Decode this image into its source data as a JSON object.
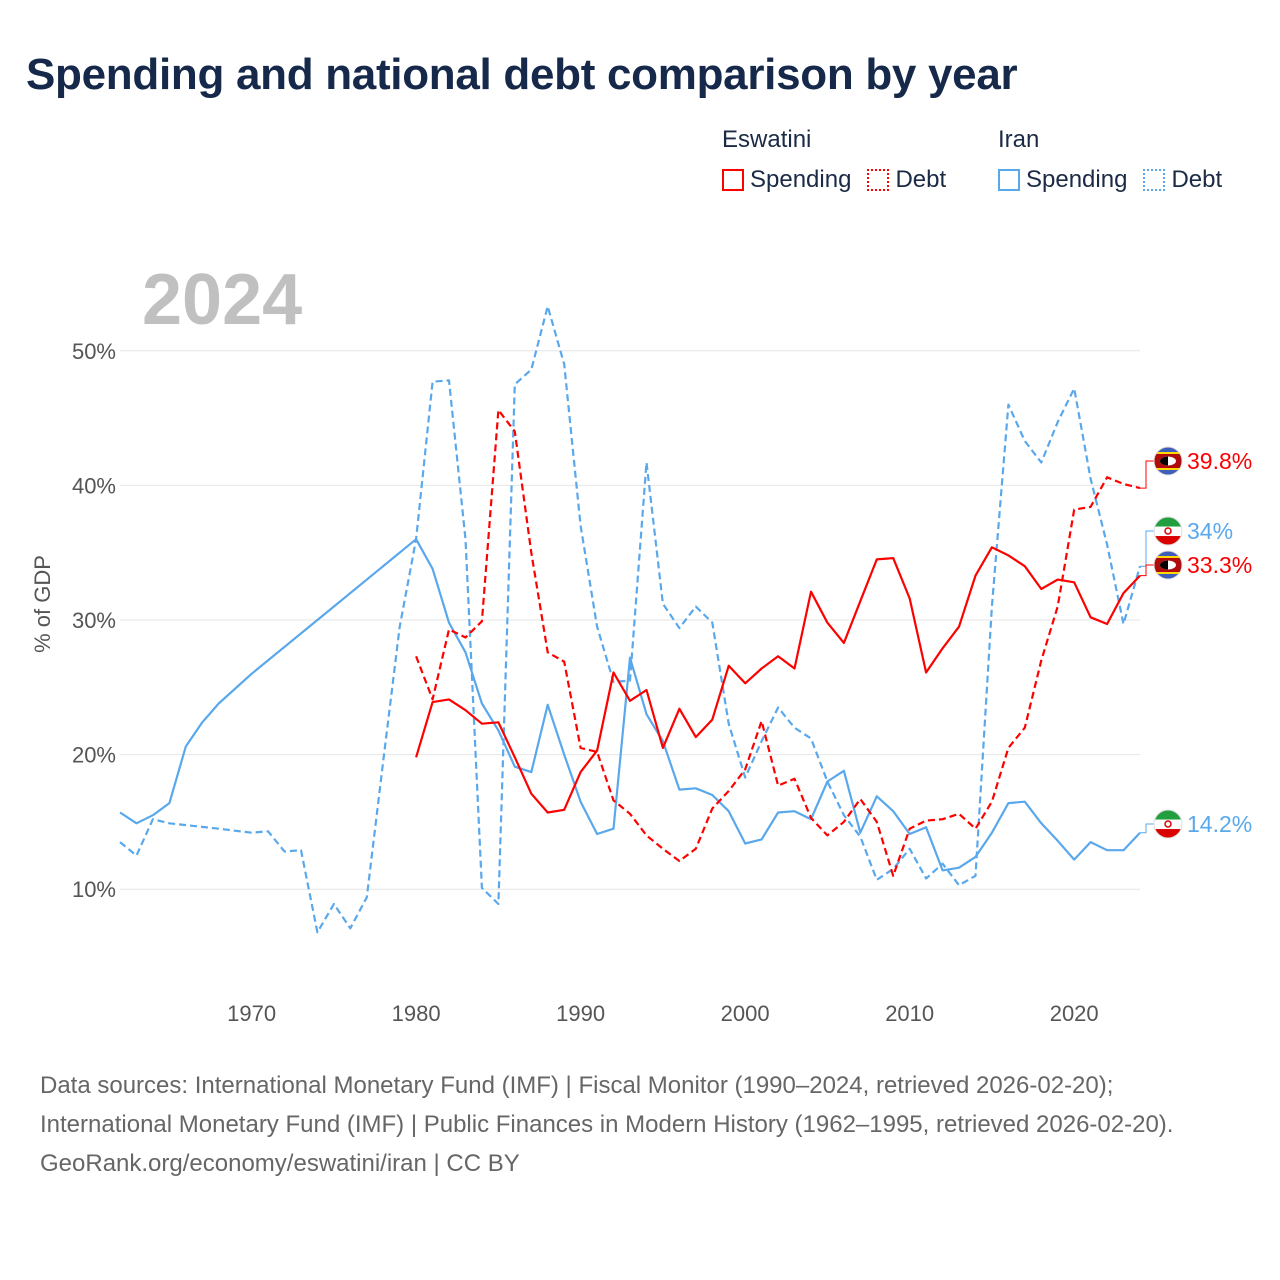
{
  "title": "Spending and national debt comparison by year",
  "legend": {
    "groups": [
      {
        "country": "Eswatini",
        "items": [
          "Spending",
          "Debt"
        ]
      },
      {
        "country": "Iran",
        "items": [
          "Spending",
          "Debt"
        ]
      }
    ]
  },
  "colors": {
    "eswatini": "#ff0000",
    "iran": "#5aa8ec",
    "grid": "#e6e6e6",
    "year_label": "#c0c0c0"
  },
  "footer": {
    "sources": "Data sources: International Monetary Fund (IMF) | Fiscal Monitor (1990–2024, retrieved 2026-02-20); International Monetary Fund (IMF) | Public Finances in Modern History (1962–1995, retrieved 2026-02-20).",
    "credit": "GeoRank.org/economy/eswatini/iran | CC BY"
  },
  "chart_data": {
    "type": "line",
    "year_label": "2024",
    "ylabel": "% of GDP",
    "xlim": [
      1962,
      2024
    ],
    "ylim": [
      4,
      56
    ],
    "x_ticks": [
      1970,
      1980,
      1990,
      2000,
      2010,
      2020
    ],
    "y_ticks": [
      10,
      20,
      30,
      40,
      50
    ],
    "y_tick_labels": [
      "10%",
      "20%",
      "30%",
      "40%",
      "50%"
    ],
    "series": [
      {
        "key": "iran_debt",
        "name": "Iran Debt",
        "country": "Iran",
        "dashed": true,
        "points": [
          [
            1962,
            13.5
          ],
          [
            1963,
            12.5
          ],
          [
            1964,
            15.2
          ],
          [
            1965,
            14.9
          ],
          [
            1968,
            14.5
          ],
          [
            1970,
            14.2
          ],
          [
            1971,
            14.3
          ],
          [
            1972,
            12.8
          ],
          [
            1973,
            12.9
          ],
          [
            1974,
            6.8
          ],
          [
            1975,
            8.9
          ],
          [
            1976,
            7.1
          ],
          [
            1977,
            9.4
          ],
          [
            1978,
            19.5
          ],
          [
            1979,
            29.5
          ],
          [
            1980,
            36.0
          ],
          [
            1981,
            47.7
          ],
          [
            1982,
            47.8
          ],
          [
            1983,
            36.0
          ],
          [
            1984,
            10.1
          ],
          [
            1985,
            8.9
          ],
          [
            1986,
            47.5
          ],
          [
            1987,
            48.6
          ],
          [
            1988,
            53.3
          ],
          [
            1989,
            49.0
          ],
          [
            1990,
            37.0
          ],
          [
            1991,
            29.5
          ],
          [
            1992,
            25.4
          ],
          [
            1993,
            25.5
          ],
          [
            1994,
            41.7
          ],
          [
            1995,
            31.2
          ],
          [
            1996,
            29.4
          ],
          [
            1997,
            31.0
          ],
          [
            1998,
            29.8
          ],
          [
            1999,
            22.3
          ],
          [
            2000,
            18.3
          ],
          [
            2001,
            21.0
          ],
          [
            2002,
            23.5
          ],
          [
            2003,
            22.0
          ],
          [
            2004,
            21.2
          ],
          [
            2005,
            18.0
          ],
          [
            2006,
            15.5
          ],
          [
            2007,
            13.9
          ],
          [
            2008,
            10.7
          ],
          [
            2009,
            11.5
          ],
          [
            2010,
            13.0
          ],
          [
            2011,
            10.8
          ],
          [
            2012,
            11.9
          ],
          [
            2013,
            10.3
          ],
          [
            2014,
            11.0
          ],
          [
            2015,
            31.0
          ],
          [
            2016,
            46.0
          ],
          [
            2017,
            43.3
          ],
          [
            2018,
            41.7
          ],
          [
            2019,
            44.7
          ],
          [
            2020,
            47.2
          ],
          [
            2021,
            40.5
          ],
          [
            2022,
            35.6
          ],
          [
            2023,
            29.7
          ],
          [
            2024,
            34.0
          ]
        ]
      },
      {
        "key": "iran_spending",
        "name": "Iran Spending",
        "country": "Iran",
        "dashed": false,
        "points": [
          [
            1962,
            15.7
          ],
          [
            1963,
            14.9
          ],
          [
            1964,
            15.5
          ],
          [
            1965,
            16.4
          ],
          [
            1966,
            20.6
          ],
          [
            1967,
            22.4
          ],
          [
            1968,
            23.8
          ],
          [
            1970,
            26.0
          ],
          [
            1975,
            31.0
          ],
          [
            1980,
            36.0
          ],
          [
            1981,
            33.8
          ],
          [
            1982,
            29.8
          ],
          [
            1983,
            27.6
          ],
          [
            1984,
            23.8
          ],
          [
            1985,
            21.8
          ],
          [
            1986,
            19.1
          ],
          [
            1987,
            18.7
          ],
          [
            1988,
            23.7
          ],
          [
            1989,
            20.0
          ],
          [
            1990,
            16.5
          ],
          [
            1991,
            14.1
          ],
          [
            1992,
            14.5
          ],
          [
            1993,
            27.2
          ],
          [
            1994,
            23.0
          ],
          [
            1995,
            21.0
          ],
          [
            1996,
            17.4
          ],
          [
            1997,
            17.5
          ],
          [
            1998,
            17.0
          ],
          [
            1999,
            15.8
          ],
          [
            2000,
            13.4
          ],
          [
            2001,
            13.7
          ],
          [
            2002,
            15.7
          ],
          [
            2003,
            15.8
          ],
          [
            2004,
            15.2
          ],
          [
            2005,
            18.0
          ],
          [
            2006,
            18.8
          ],
          [
            2007,
            14.2
          ],
          [
            2008,
            16.9
          ],
          [
            2009,
            15.8
          ],
          [
            2010,
            14.1
          ],
          [
            2011,
            14.6
          ],
          [
            2012,
            11.4
          ],
          [
            2013,
            11.6
          ],
          [
            2014,
            12.4
          ],
          [
            2015,
            14.2
          ],
          [
            2016,
            16.4
          ],
          [
            2017,
            16.5
          ],
          [
            2018,
            14.9
          ],
          [
            2019,
            13.6
          ],
          [
            2020,
            12.2
          ],
          [
            2021,
            13.5
          ],
          [
            2022,
            12.9
          ],
          [
            2023,
            12.9
          ],
          [
            2024,
            14.2
          ]
        ]
      },
      {
        "key": "esw_debt",
        "name": "Eswatini Debt",
        "country": "Eswatini",
        "dashed": true,
        "points": [
          [
            1980,
            27.3
          ],
          [
            1981,
            24.1
          ],
          [
            1982,
            29.3
          ],
          [
            1983,
            28.7
          ],
          [
            1984,
            29.9
          ],
          [
            1985,
            45.6
          ],
          [
            1986,
            44.0
          ],
          [
            1987,
            35.0
          ],
          [
            1988,
            27.6
          ],
          [
            1989,
            26.9
          ],
          [
            1990,
            20.5
          ],
          [
            1991,
            20.2
          ],
          [
            1992,
            16.6
          ],
          [
            1993,
            15.6
          ],
          [
            1994,
            14.0
          ],
          [
            1995,
            13.0
          ],
          [
            1996,
            12.1
          ],
          [
            1997,
            13.0
          ],
          [
            1998,
            16.0
          ],
          [
            1999,
            17.3
          ],
          [
            2000,
            18.9
          ],
          [
            2001,
            22.5
          ],
          [
            2002,
            17.7
          ],
          [
            2003,
            18.2
          ],
          [
            2004,
            15.3
          ],
          [
            2005,
            14.0
          ],
          [
            2006,
            15.0
          ],
          [
            2007,
            16.7
          ],
          [
            2008,
            15.0
          ],
          [
            2009,
            11.0
          ],
          [
            2010,
            14.5
          ],
          [
            2011,
            15.1
          ],
          [
            2012,
            15.2
          ],
          [
            2013,
            15.6
          ],
          [
            2014,
            14.5
          ],
          [
            2015,
            16.5
          ],
          [
            2016,
            20.5
          ],
          [
            2017,
            22.0
          ],
          [
            2018,
            27.0
          ],
          [
            2019,
            31.0
          ],
          [
            2020,
            38.2
          ],
          [
            2021,
            38.4
          ],
          [
            2022,
            40.6
          ],
          [
            2023,
            40.1
          ],
          [
            2024,
            39.8
          ]
        ]
      },
      {
        "key": "esw_spending",
        "name": "Eswatini Spending",
        "country": "Eswatini",
        "dashed": false,
        "points": [
          [
            1980,
            19.8
          ],
          [
            1981,
            23.9
          ],
          [
            1982,
            24.1
          ],
          [
            1983,
            23.3
          ],
          [
            1984,
            22.3
          ],
          [
            1985,
            22.4
          ],
          [
            1986,
            19.8
          ],
          [
            1987,
            17.1
          ],
          [
            1988,
            15.7
          ],
          [
            1989,
            15.9
          ],
          [
            1990,
            18.7
          ],
          [
            1991,
            20.3
          ],
          [
            1992,
            26.1
          ],
          [
            1993,
            24.0
          ],
          [
            1994,
            24.8
          ],
          [
            1995,
            20.5
          ],
          [
            1996,
            23.4
          ],
          [
            1997,
            21.3
          ],
          [
            1998,
            22.6
          ],
          [
            1999,
            26.6
          ],
          [
            2000,
            25.3
          ],
          [
            2001,
            26.4
          ],
          [
            2002,
            27.3
          ],
          [
            2003,
            26.4
          ],
          [
            2004,
            32.1
          ],
          [
            2005,
            29.8
          ],
          [
            2006,
            28.3
          ],
          [
            2007,
            31.4
          ],
          [
            2008,
            34.5
          ],
          [
            2009,
            34.6
          ],
          [
            2010,
            31.6
          ],
          [
            2011,
            26.1
          ],
          [
            2012,
            27.9
          ],
          [
            2013,
            29.5
          ],
          [
            2014,
            33.3
          ],
          [
            2015,
            35.4
          ],
          [
            2016,
            34.8
          ],
          [
            2017,
            34.0
          ],
          [
            2018,
            32.3
          ],
          [
            2019,
            33.0
          ],
          [
            2020,
            32.8
          ],
          [
            2021,
            30.2
          ],
          [
            2022,
            29.7
          ],
          [
            2023,
            32.0
          ],
          [
            2024,
            33.3
          ]
        ]
      }
    ],
    "end_labels": [
      {
        "series": "esw_debt",
        "text": "39.8%",
        "country": "Eswatini",
        "value": 39.8
      },
      {
        "series": "iran_debt",
        "text": "34%",
        "country": "Iran",
        "value": 34.0
      },
      {
        "series": "esw_spending",
        "text": "33.3%",
        "country": "Eswatini",
        "value": 33.3
      },
      {
        "series": "iran_spending",
        "text": "14.2%",
        "country": "Iran",
        "value": 14.2
      }
    ]
  }
}
